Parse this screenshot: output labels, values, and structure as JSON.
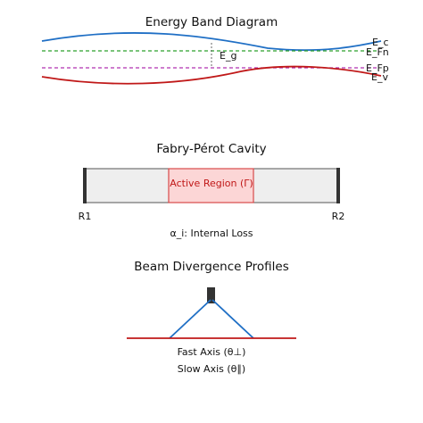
{
  "band_diagram": {
    "title": "Energy Band Diagram",
    "labels": {
      "conduction": "E_c",
      "fermi_n": "E_Fn",
      "fermi_p": "E_Fp",
      "valence": "E_v",
      "gap": "E_g"
    },
    "colors": {
      "conduction": "#1f6fc5",
      "fermi_n": "#2ca02c",
      "fermi_p": "#b030b0",
      "valence": "#c01818"
    }
  },
  "cavity": {
    "title": "Fabry-Pérot Cavity",
    "active_label": "Active Region (Γ)",
    "mirror_left": "R1",
    "mirror_right": "R2",
    "loss_label": "α_i: Internal Loss",
    "colors": {
      "active_fill": "#fcd6d6",
      "active_stroke": "#d84a4a",
      "active_text": "#c01818",
      "body_fill": "#eeeeee"
    }
  },
  "beam": {
    "title": "Beam Divergence Profiles",
    "fast_axis_label": "Fast Axis (θ⊥)",
    "slow_axis_label": "Slow Axis (θ∥)",
    "colors": {
      "fast": "#1f6fc5",
      "slow": "#c01818",
      "emitter": "#333333"
    }
  }
}
